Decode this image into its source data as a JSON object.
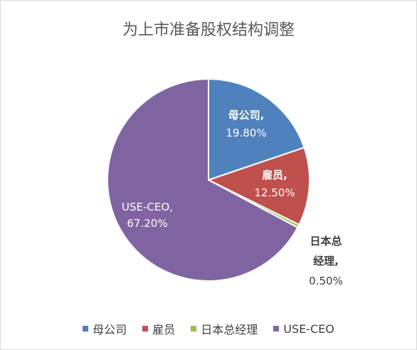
{
  "chart_data": {
    "type": "pie",
    "title": "为上市准备股权结构调整",
    "slices": [
      {
        "name": "母公司",
        "value": 19.8,
        "display": "19.80%",
        "color": "#4F81BD"
      },
      {
        "name": "雇员",
        "value": 12.5,
        "display": "12.50%",
        "color": "#C0504D"
      },
      {
        "name": "日本总经理",
        "value": 0.5,
        "display": "0.50%",
        "color": "#9BBB59"
      },
      {
        "name": "USE-CEO",
        "value": 67.2,
        "display": "67.20%",
        "color": "#8064A2"
      }
    ],
    "legend_position": "bottom"
  },
  "labels": {
    "parent": {
      "line1": "母公司,",
      "line2": "19.80%"
    },
    "employee": {
      "line1": "雇员,",
      "line2": "12.50%"
    },
    "japan_gm": {
      "line1": "日本总",
      "line2": "经理,",
      "line3": "0.50%"
    },
    "use_ceo": {
      "line1": "USE-CEO,",
      "line2": "67.20%"
    }
  }
}
